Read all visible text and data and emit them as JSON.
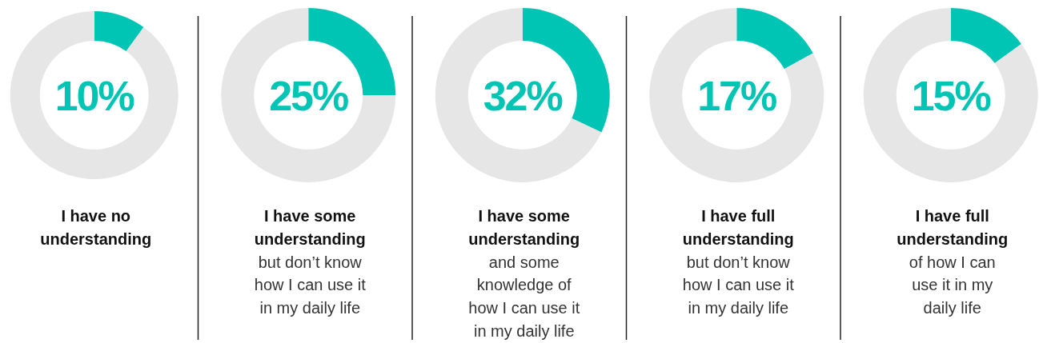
{
  "chart_data": [
    {
      "type": "donut",
      "title": "I have no\nunderstanding",
      "categories": [
        null,
        null
      ],
      "values": [
        10,
        90
      ],
      "colors": [
        "#00c4b4",
        "#e6e6e6"
      ],
      "annotations": [
        "10%"
      ]
    },
    {
      "type": "donut",
      "title": "I have some\nunderstanding",
      "subtitle": "but don’t know\nhow I can use it\nin my daily life",
      "categories": [
        null,
        null
      ],
      "values": [
        25,
        75
      ],
      "colors": [
        "#00c4b4",
        "#e6e6e6"
      ],
      "annotations": [
        "25%"
      ]
    },
    {
      "type": "donut",
      "title": "I have some\nunderstanding",
      "subtitle": "and some\nknowledge of\nhow I can use it\nin my daily life",
      "categories": [
        null,
        null
      ],
      "values": [
        32,
        68
      ],
      "colors": [
        "#00c4b4",
        "#e6e6e6"
      ],
      "annotations": [
        "32%"
      ]
    },
    {
      "type": "donut",
      "title": "I have full\nunderstanding",
      "subtitle": "but don’t know\nhow I can use it\nin my daily life",
      "categories": [
        null,
        null
      ],
      "values": [
        17,
        83
      ],
      "colors": [
        "#00c4b4",
        "#e6e6e6"
      ],
      "annotations": [
        "17%"
      ]
    },
    {
      "type": "donut",
      "title": "I have full\nunderstanding",
      "subtitle": "of how I can\nuse it in my\ndaily life",
      "categories": [
        null,
        null
      ],
      "values": [
        15,
        85
      ],
      "colors": [
        "#00c4b4",
        "#e6e6e6"
      ],
      "annotations": [
        "15%"
      ]
    }
  ]
}
